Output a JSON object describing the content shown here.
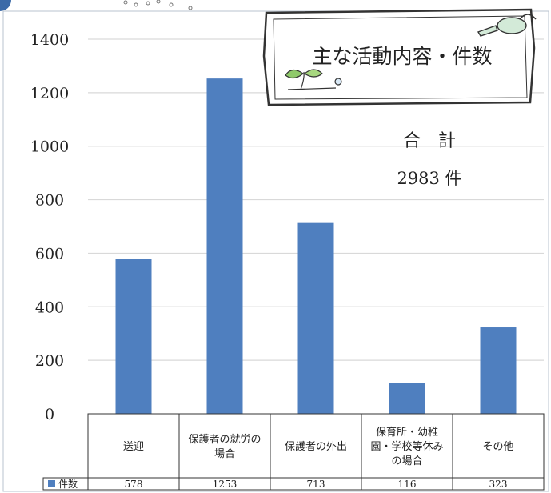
{
  "chart_data": {
    "type": "bar",
    "categories": [
      [
        "送迎"
      ],
      [
        "保護者の就労の",
        "場合"
      ],
      [
        "保護者の外出"
      ],
      [
        "保育所・幼稚",
        "園・学校等休み",
        "の場合"
      ],
      [
        "その他"
      ]
    ],
    "series": [
      {
        "name": "件数",
        "values": [
          578,
          1253,
          713,
          116,
          323
        ],
        "color": "#4f7fbf"
      }
    ],
    "yticks": [
      0,
      200,
      400,
      600,
      800,
      1000,
      1200,
      1400
    ],
    "ylim": [
      0,
      1400
    ],
    "grid": true,
    "legend": "data-table-left"
  },
  "title_card": {
    "text": "主な活動内容・件数"
  },
  "total": {
    "label": "合　計",
    "value": "2983 件"
  },
  "colors": {
    "bar": "#4f7fbf",
    "grid": "#d9d9d9",
    "frame": "#9aa7b8",
    "card_border": "#333333"
  }
}
